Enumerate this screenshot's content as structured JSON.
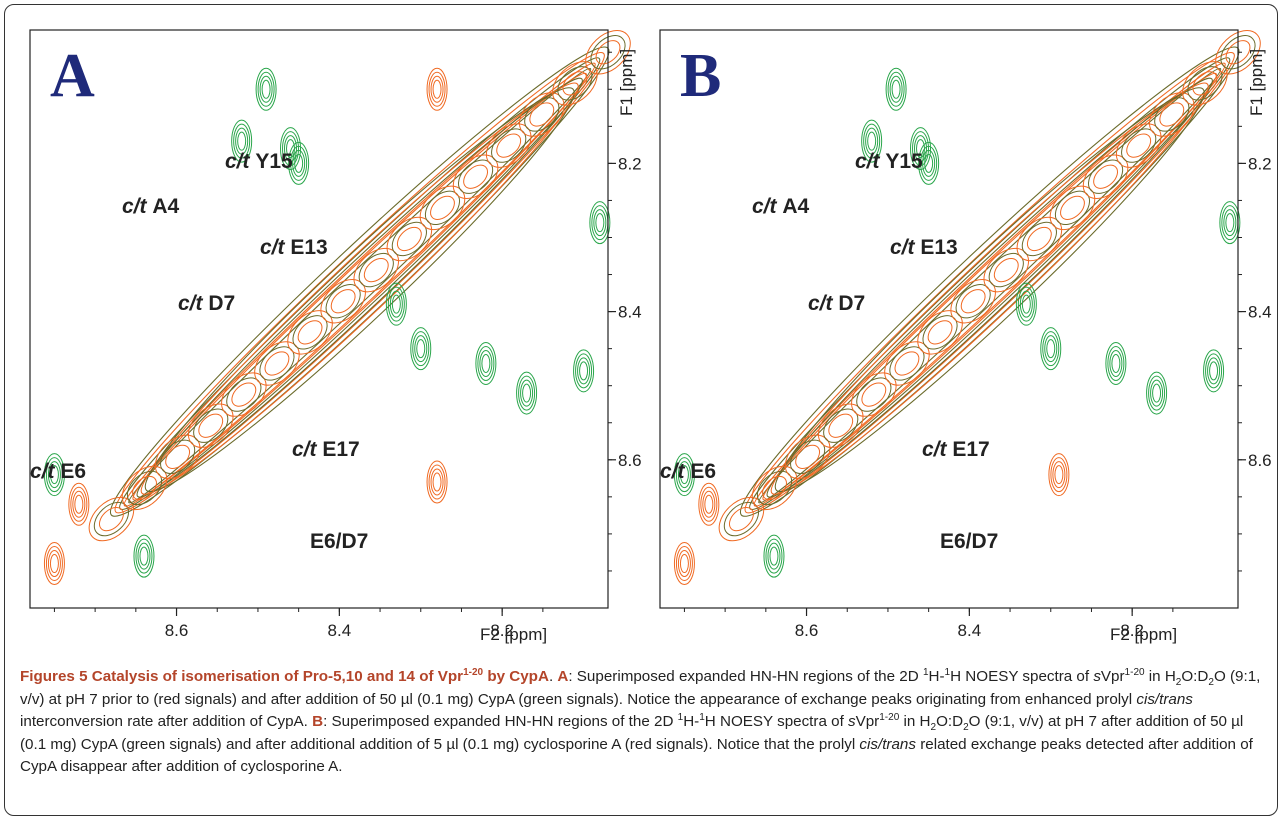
{
  "figure": {
    "panels": [
      {
        "letter": "A",
        "xlabel": "F2 [ppm]",
        "ylabel": "F1 [ppm]",
        "xticks": [
          "8.6",
          "8.4",
          "8.2"
        ],
        "yticks": [
          "8.2",
          "8.4",
          "8.6"
        ],
        "labels": [
          {
            "italic": "c/t",
            "bold": "Y15"
          },
          {
            "italic": "c/t",
            "bold": "A4"
          },
          {
            "italic": "c/t",
            "bold": "E13"
          },
          {
            "italic": "c/t",
            "bold": "D7"
          },
          {
            "italic": "c/t",
            "bold": "E17"
          },
          {
            "italic": "c/t",
            "bold": "E6"
          },
          {
            "italic": "",
            "bold": "E6/D7"
          }
        ]
      },
      {
        "letter": "B",
        "xlabel": "F2 [ppm]",
        "ylabel": "F1 [ppm]",
        "xticks": [
          "8.6",
          "8.4",
          "8.2"
        ],
        "yticks": [
          "8.2",
          "8.4",
          "8.6"
        ],
        "labels": [
          {
            "italic": "c/t",
            "bold": "Y15"
          },
          {
            "italic": "c/t",
            "bold": "A4"
          },
          {
            "italic": "c/t",
            "bold": "E13"
          },
          {
            "italic": "c/t",
            "bold": "D7"
          },
          {
            "italic": "c/t",
            "bold": "E17"
          },
          {
            "italic": "c/t",
            "bold": "E6"
          },
          {
            "italic": "",
            "bold": "E6/D7"
          }
        ]
      }
    ],
    "colors": {
      "green": "#2aa64b",
      "orange": "#f06a23",
      "olive": "#6a6a2a",
      "letter": "#1f2a7a"
    }
  },
  "chart_data": [
    {
      "type": "scatter",
      "title": "",
      "xlabel": "F2 [ppm]",
      "ylabel": "F1 [ppm]",
      "xlim": [
        8.78,
        8.07
      ],
      "ylim": [
        8.02,
        8.8
      ],
      "x_reversed": true,
      "y_reversed": true,
      "series": [
        {
          "name": "",
          "color": "#2aa64b",
          "x": [
            8.75,
            8.52,
            8.49,
            8.46,
            8.45,
            8.33,
            8.3,
            8.22,
            8.17,
            8.1,
            8.08,
            8.64
          ],
          "y": [
            8.62,
            8.17,
            8.1,
            8.18,
            8.2,
            8.39,
            8.45,
            8.47,
            8.51,
            8.48,
            8.28,
            8.73
          ]
        },
        {
          "name": "",
          "color": "#f06a23",
          "x": [
            8.75,
            8.28,
            8.72,
            8.28
          ],
          "y": [
            8.74,
            8.63,
            8.66,
            8.1
          ]
        }
      ],
      "annotations": [
        "c/t Y15",
        "c/t A4",
        "c/t E13",
        "c/t D7",
        "c/t E17",
        "c/t E6",
        "E6/D7"
      ]
    },
    {
      "type": "scatter",
      "title": "",
      "xlabel": "F2 [ppm]",
      "ylabel": "F1 [ppm]",
      "xlim": [
        8.78,
        8.07
      ],
      "ylim": [
        8.02,
        8.8
      ],
      "x_reversed": true,
      "y_reversed": true,
      "series": [
        {
          "name": "",
          "color": "#2aa64b",
          "x": [
            8.75,
            8.52,
            8.49,
            8.46,
            8.45,
            8.33,
            8.3,
            8.22,
            8.17,
            8.1,
            8.08,
            8.64
          ],
          "y": [
            8.62,
            8.17,
            8.1,
            8.18,
            8.2,
            8.39,
            8.45,
            8.47,
            8.51,
            8.48,
            8.28,
            8.73
          ]
        },
        {
          "name": "",
          "color": "#f06a23",
          "x": [
            8.75,
            8.29,
            8.72
          ],
          "y": [
            8.74,
            8.62,
            8.66
          ]
        }
      ],
      "annotations": [
        "c/t Y15",
        "c/t A4",
        "c/t E13",
        "c/t D7",
        "c/t E17",
        "c/t E6",
        "E6/D7"
      ]
    }
  ],
  "caption": {
    "title": "Figures 5 Catalysis of isomerisation of Pro-5,10 and 14 of Vpr",
    "title_sup": "1-20",
    "title_end": " by CypA",
    "p1_a": "A",
    "p1_1": ": Superimposed expanded HN-HN regions of the 2D ",
    "sup1": "1",
    "p1_2": "H-",
    "sup2": "1",
    "p1_3": "H NOESY spectra of ",
    "s1": "s",
    "p1_4": "Vpr",
    "sup3": "1-20",
    "p1_5": " in H",
    "sub1": "2",
    "p1_6": "O:D",
    "sub2": "2",
    "p1_7": "O (9:1, v/v) at pH 7 prior to (red signals) and after addition of 50 µl (0.1 mg) CypA (green signals). Notice the appearance of exchange peaks originating from enhanced prolyl ",
    "it1": "cis/trans",
    "p1_8": " interconversion rate after addition of CypA. ",
    "p2_b": "B",
    "p2_1": ": Superimposed expanded HN-HN regions of the 2D ",
    "sup4": "1",
    "p2_2": "H-",
    "sup5": "1",
    "p2_3": "H NOESY spectra of ",
    "s2": "s",
    "p2_4": "Vpr",
    "sup6": "1-20",
    "p2_5": " in H",
    "sub3": "2",
    "p2_6": "O:D",
    "sub4": "2",
    "p2_7": "O (9:1, v/v) at pH 7 after addition of 50 µl (0.1 mg) CypA (green signals) and after additional addition of 5 µl (0.1 mg) cyclosporine A (red signals). Notice that the prolyl ",
    "it2": "cis/trans",
    "p2_8": " related exchange peaks detected after addition of CypA disappear after addition of cyclosporine A."
  }
}
